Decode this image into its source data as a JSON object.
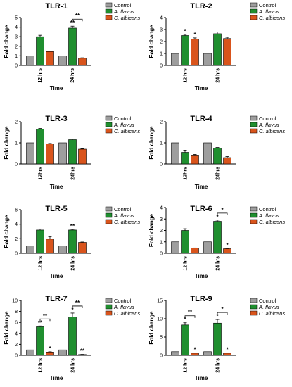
{
  "colors": {
    "control": "#9e9e9e",
    "a_flavus": "#1f8f2f",
    "c_albicans": "#d9541c",
    "axis": "#000000"
  },
  "legend_labels": [
    "Control",
    "A. flavus",
    "C. albicans"
  ],
  "chart_data": [
    {
      "type": "bar",
      "title": "TLR-1",
      "xlabel": "Time",
      "ylabel": "Fold change",
      "categories": [
        "12 hrs",
        "24 hrs"
      ],
      "ylim": [
        0,
        5
      ],
      "yticks": [
        0,
        1,
        2,
        3,
        4,
        5
      ],
      "series": [
        {
          "name": "Control",
          "values": [
            1.0,
            1.0
          ],
          "errors": [
            0,
            0
          ]
        },
        {
          "name": "A. flavus",
          "values": [
            3.0,
            3.9
          ],
          "errors": [
            0.15,
            0.2
          ]
        },
        {
          "name": "C. albicans",
          "values": [
            1.45,
            0.75
          ],
          "errors": [
            0.05,
            0.05
          ]
        }
      ],
      "stars": [
        {
          "group": 1,
          "bar": 1,
          "text": "**"
        }
      ],
      "brackets": [
        {
          "group": 1,
          "from": 1,
          "to": 2,
          "text": "**"
        }
      ],
      "tick_rotate": false
    },
    {
      "type": "bar",
      "title": "TLR-2",
      "xlabel": "Time",
      "ylabel": "Fold change",
      "categories": [
        "12 hrs",
        "24 hrs"
      ],
      "ylim": [
        0,
        4
      ],
      "yticks": [
        0,
        1,
        2,
        3,
        4
      ],
      "series": [
        {
          "name": "Control",
          "values": [
            1.0,
            1.0
          ],
          "errors": [
            0,
            0
          ]
        },
        {
          "name": "A. flavus",
          "values": [
            2.5,
            2.65
          ],
          "errors": [
            0.1,
            0.15
          ]
        },
        {
          "name": "C. albicans",
          "values": [
            2.2,
            2.25
          ],
          "errors": [
            0.1,
            0.1
          ]
        }
      ],
      "stars": [
        {
          "group": 0,
          "bar": 1,
          "text": "*"
        },
        {
          "group": 0,
          "bar": 2,
          "text": "*"
        }
      ],
      "brackets": [],
      "tick_rotate": true
    },
    {
      "type": "bar",
      "title": "TLR-3",
      "xlabel": "Time",
      "ylabel": "Fold change",
      "categories": [
        "12hrs",
        "24hrs"
      ],
      "ylim": [
        0,
        2
      ],
      "yticks": [
        0,
        1,
        2
      ],
      "series": [
        {
          "name": "Control",
          "values": [
            1.0,
            1.0
          ],
          "errors": [
            0,
            0
          ]
        },
        {
          "name": "A. flavus",
          "values": [
            1.65,
            1.15
          ],
          "errors": [
            0.03,
            0.03
          ]
        },
        {
          "name": "C. albicans",
          "values": [
            0.95,
            0.7
          ],
          "errors": [
            0.02,
            0.02
          ]
        }
      ],
      "stars": [],
      "brackets": [],
      "tick_rotate": true
    },
    {
      "type": "bar",
      "title": "TLR-4",
      "xlabel": "Time",
      "ylabel": "Fold change",
      "categories": [
        "12hrs",
        "24hrs"
      ],
      "ylim": [
        0,
        2
      ],
      "yticks": [
        0,
        1,
        2
      ],
      "series": [
        {
          "name": "Control",
          "values": [
            1.0,
            1.0
          ],
          "errors": [
            0,
            0
          ]
        },
        {
          "name": "A. flavus",
          "values": [
            0.55,
            0.75
          ],
          "errors": [
            0.1,
            0.03
          ]
        },
        {
          "name": "C. albicans",
          "values": [
            0.42,
            0.3
          ],
          "errors": [
            0.03,
            0.05
          ]
        }
      ],
      "stars": [],
      "brackets": [],
      "tick_rotate": true
    },
    {
      "type": "bar",
      "title": "TLR-5",
      "xlabel": "Time",
      "ylabel": "Fold change",
      "categories": [
        "12 hrs",
        "24 hrs"
      ],
      "ylim": [
        0,
        6
      ],
      "yticks": [
        0,
        2,
        4,
        6
      ],
      "series": [
        {
          "name": "Control",
          "values": [
            1.0,
            1.0
          ],
          "errors": [
            0,
            0
          ]
        },
        {
          "name": "A. flavus",
          "values": [
            3.2,
            3.2
          ],
          "errors": [
            0.15,
            0.1
          ]
        },
        {
          "name": "C. albicans",
          "values": [
            1.95,
            1.5
          ],
          "errors": [
            0.35,
            0.05
          ]
        }
      ],
      "stars": [
        {
          "group": 1,
          "bar": 1,
          "text": "**"
        }
      ],
      "brackets": [],
      "tick_rotate": true
    },
    {
      "type": "bar",
      "title": "TLR-6",
      "xlabel": "Time",
      "ylabel": "Fold change",
      "categories": [
        "12 hrs",
        "24 hrs"
      ],
      "ylim": [
        0,
        4
      ],
      "yticks": [
        0,
        1,
        2,
        3,
        4
      ],
      "series": [
        {
          "name": "Control",
          "values": [
            1.0,
            1.0
          ],
          "errors": [
            0,
            0
          ]
        },
        {
          "name": "A. flavus",
          "values": [
            2.0,
            2.8
          ],
          "errors": [
            0.15,
            0.1
          ]
        },
        {
          "name": "C. albicans",
          "values": [
            0.45,
            0.4
          ],
          "errors": [
            0.02,
            0.03
          ]
        }
      ],
      "stars": [
        {
          "group": 1,
          "bar": 1,
          "text": "*"
        },
        {
          "group": 1,
          "bar": 2,
          "text": "*"
        }
      ],
      "brackets": [
        {
          "group": 1,
          "from": 1,
          "to": 2,
          "text": "*"
        }
      ],
      "tick_rotate": true
    },
    {
      "type": "bar",
      "title": "TLR-7",
      "xlabel": "Time",
      "ylabel": "Fold change",
      "categories": [
        "12 hrs",
        "24 hrs"
      ],
      "ylim": [
        0,
        10
      ],
      "yticks": [
        0,
        2,
        4,
        6,
        8,
        10
      ],
      "series": [
        {
          "name": "Control",
          "values": [
            1.0,
            1.0
          ],
          "errors": [
            0,
            0
          ]
        },
        {
          "name": "A. flavus",
          "values": [
            5.2,
            7.0
          ],
          "errors": [
            0.15,
            0.7
          ]
        },
        {
          "name": "C. albicans",
          "values": [
            0.6,
            0.15
          ],
          "errors": [
            0.05,
            0.03
          ]
        }
      ],
      "stars": [
        {
          "group": 0,
          "bar": 1,
          "text": "**"
        },
        {
          "group": 0,
          "bar": 2,
          "text": "*"
        },
        {
          "group": 1,
          "bar": 1,
          "text": "*"
        },
        {
          "group": 1,
          "bar": 2,
          "text": "**"
        }
      ],
      "brackets": [
        {
          "group": 0,
          "from": 1,
          "to": 2,
          "text": "**"
        },
        {
          "group": 1,
          "from": 1,
          "to": 2,
          "text": "**"
        }
      ],
      "tick_rotate": true
    },
    {
      "type": "bar",
      "title": "TLR-9",
      "xlabel": "Time",
      "ylabel": "Fold change",
      "categories": [
        "12 hrs",
        "24 hrs"
      ],
      "ylim": [
        0,
        15
      ],
      "yticks": [
        0,
        5,
        10,
        15
      ],
      "series": [
        {
          "name": "Control",
          "values": [
            1.0,
            1.0
          ],
          "errors": [
            0,
            0
          ]
        },
        {
          "name": "A. flavus",
          "values": [
            8.3,
            8.8
          ],
          "errors": [
            0.6,
            1.0
          ]
        },
        {
          "name": "C. albicans",
          "values": [
            0.6,
            0.6
          ],
          "errors": [
            0.05,
            0.05
          ]
        }
      ],
      "stars": [
        {
          "group": 0,
          "bar": 1,
          "text": "*"
        },
        {
          "group": 0,
          "bar": 2,
          "text": "*"
        },
        {
          "group": 1,
          "bar": 1,
          "text": "*"
        },
        {
          "group": 1,
          "bar": 2,
          "text": "*"
        }
      ],
      "brackets": [
        {
          "group": 0,
          "from": 1,
          "to": 2,
          "text": "**"
        },
        {
          "group": 1,
          "from": 1,
          "to": 2,
          "text": "*"
        }
      ],
      "tick_rotate": true
    }
  ]
}
